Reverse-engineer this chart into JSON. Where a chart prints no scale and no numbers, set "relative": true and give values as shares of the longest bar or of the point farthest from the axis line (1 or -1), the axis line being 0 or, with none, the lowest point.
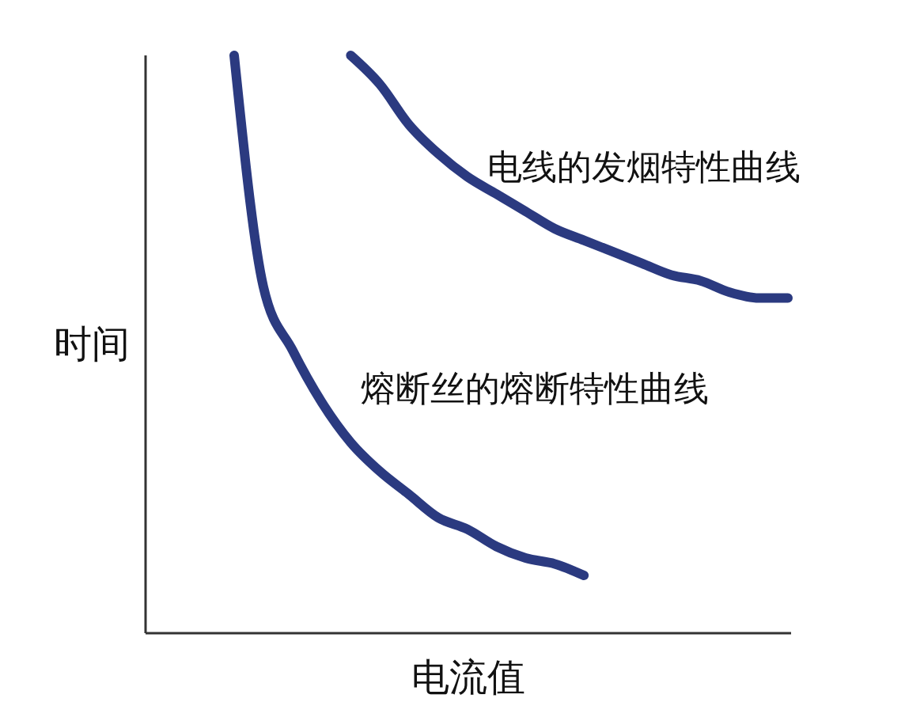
{
  "chart_data": {
    "type": "line",
    "xlabel": "电流值",
    "ylabel": "时间",
    "relative": true,
    "categories": [
      null,
      null,
      null,
      null,
      null,
      null,
      null,
      null,
      null,
      null,
      null,
      null,
      null,
      null,
      null,
      null,
      null,
      null,
      null,
      null
    ],
    "series": [
      {
        "name": "熔断丝的熔断特性曲线",
        "color": "#2b3a80",
        "values": [
          1.0,
          0.6,
          0.49,
          0.4,
          0.33,
          0.28,
          0.24,
          0.2,
          0.18,
          0.15,
          0.13,
          0.12,
          0.1,
          null,
          null,
          null,
          null,
          null,
          null,
          null
        ]
      },
      {
        "name": "电线的发烟特性曲线",
        "color": "#2b3a80",
        "values": [
          null,
          null,
          null,
          null,
          1.0,
          0.95,
          0.88,
          0.83,
          0.79,
          0.76,
          0.73,
          0.7,
          0.68,
          0.66,
          0.64,
          0.62,
          0.61,
          0.59,
          0.58,
          0.58
        ]
      }
    ]
  }
}
